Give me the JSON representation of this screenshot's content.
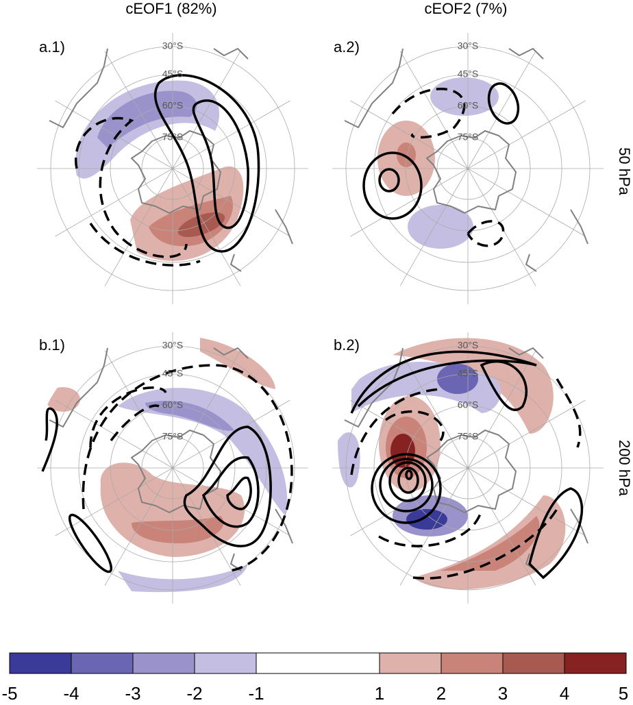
{
  "columns": [
    "cEOF1 (82%)",
    "cEOF2 (7%)"
  ],
  "rows": [
    "50 hPa",
    "200 hPa"
  ],
  "panels": [
    {
      "label": "a.1)"
    },
    {
      "label": "a.2)"
    },
    {
      "label": "b.1)"
    },
    {
      "label": "b.2)"
    }
  ],
  "latitude_labels": [
    "30°S",
    "45°S",
    "60°S",
    "75°S"
  ],
  "colorbar": {
    "bounds": [
      -5,
      -4,
      -3,
      -2,
      -1,
      1,
      2,
      3,
      4,
      5
    ],
    "colors": [
      "#3a3a98",
      "#6b66b3",
      "#9a93cb",
      "#c4bfe2",
      "#ffffff",
      "#dfb1ab",
      "#c98379",
      "#a95a50",
      "#862222"
    ]
  }
}
